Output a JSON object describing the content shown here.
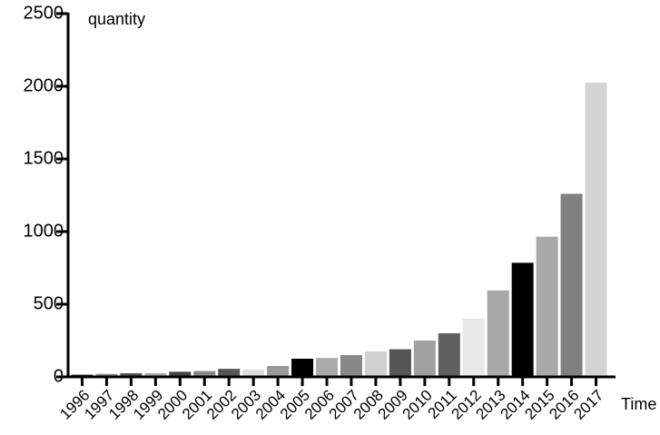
{
  "chart_data": {
    "type": "bar",
    "y_label": "quantity",
    "x_label": "Time",
    "categories": [
      "1996",
      "1997",
      "1998",
      "1999",
      "2000",
      "2001",
      "2002",
      "2003",
      "2004",
      "2005",
      "2006",
      "2007",
      "2008",
      "2009",
      "2010",
      "2011",
      "2012",
      "2013",
      "2014",
      "2015",
      "2016",
      "2017"
    ],
    "values": [
      15,
      20,
      25,
      25,
      35,
      40,
      55,
      50,
      75,
      125,
      130,
      150,
      175,
      190,
      250,
      300,
      400,
      595,
      785,
      965,
      1260,
      2025
    ],
    "colors": [
      "#222222",
      "#888888",
      "#555555",
      "#aaaaaa",
      "#444444",
      "#888888",
      "#555555",
      "#dddddd",
      "#999999",
      "#000000",
      "#aaaaaa",
      "#888888",
      "#d0d0d0",
      "#555555",
      "#a0a0a0",
      "#606060",
      "#e8e8e8",
      "#a8a8a8",
      "#000000",
      "#a8a8a8",
      "#808080",
      "#d3d3d3"
    ],
    "ylim": [
      0,
      2500
    ],
    "yticks": [
      0,
      500,
      1000,
      1500,
      2000,
      2500
    ],
    "grid": false
  }
}
